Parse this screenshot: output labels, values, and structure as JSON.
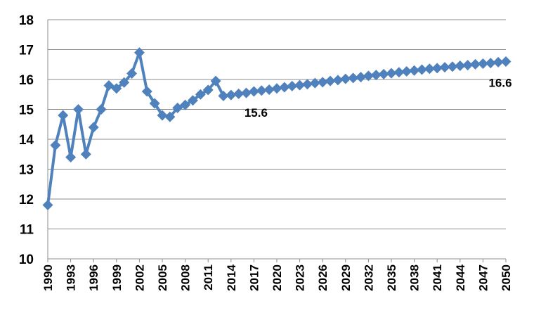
{
  "chart_data": {
    "type": "line",
    "title": "",
    "xlabel": "",
    "ylabel": "",
    "ylim": [
      10,
      18
    ],
    "yticks": [
      10,
      11,
      12,
      13,
      14,
      15,
      16,
      17,
      18
    ],
    "xlim": [
      1990,
      2050
    ],
    "xticks": [
      1990,
      1993,
      1996,
      1999,
      2002,
      2005,
      2008,
      2011,
      2014,
      2017,
      2020,
      2023,
      2026,
      2029,
      2032,
      2035,
      2038,
      2041,
      2044,
      2047,
      2050
    ],
    "grid": "horizontal",
    "legend": "none",
    "marker": "diamond",
    "color": "#4F81BD",
    "series": [
      {
        "x": [
          1990,
          1991,
          1992,
          1993,
          1994,
          1995,
          1996,
          1997,
          1998,
          1999,
          2000,
          2001,
          2002,
          2003,
          2004,
          2005,
          2006,
          2007,
          2008,
          2009,
          2010,
          2011,
          2012,
          2013,
          2014,
          2015,
          2016,
          2017,
          2018,
          2019,
          2020,
          2021,
          2022,
          2023,
          2024,
          2025,
          2026,
          2027,
          2028,
          2029,
          2030,
          2031,
          2032,
          2033,
          2034,
          2035,
          2036,
          2037,
          2038,
          2039,
          2040,
          2041,
          2042,
          2043,
          2044,
          2045,
          2046,
          2047,
          2048,
          2049,
          2050
        ],
        "values": [
          11.8,
          13.8,
          14.8,
          13.4,
          15.0,
          13.5,
          14.4,
          15.0,
          15.8,
          15.7,
          15.9,
          16.2,
          16.9,
          15.6,
          15.2,
          14.8,
          14.75,
          15.05,
          15.15,
          15.3,
          15.5,
          15.65,
          15.95,
          15.45,
          15.48,
          15.52,
          15.55,
          15.6,
          15.63,
          15.66,
          15.7,
          15.74,
          15.78,
          15.81,
          15.84,
          15.88,
          15.91,
          15.95,
          15.98,
          16.02,
          16.05,
          16.08,
          16.12,
          16.15,
          16.18,
          16.21,
          16.24,
          16.27,
          16.3,
          16.33,
          16.36,
          16.38,
          16.41,
          16.43,
          16.46,
          16.48,
          16.51,
          16.53,
          16.55,
          16.58,
          16.6
        ]
      }
    ],
    "annotations": [
      {
        "text": "15.6",
        "x": 2017,
        "y": 15.6
      },
      {
        "text": "16.6",
        "x": 2050,
        "y": 16.6
      }
    ]
  }
}
